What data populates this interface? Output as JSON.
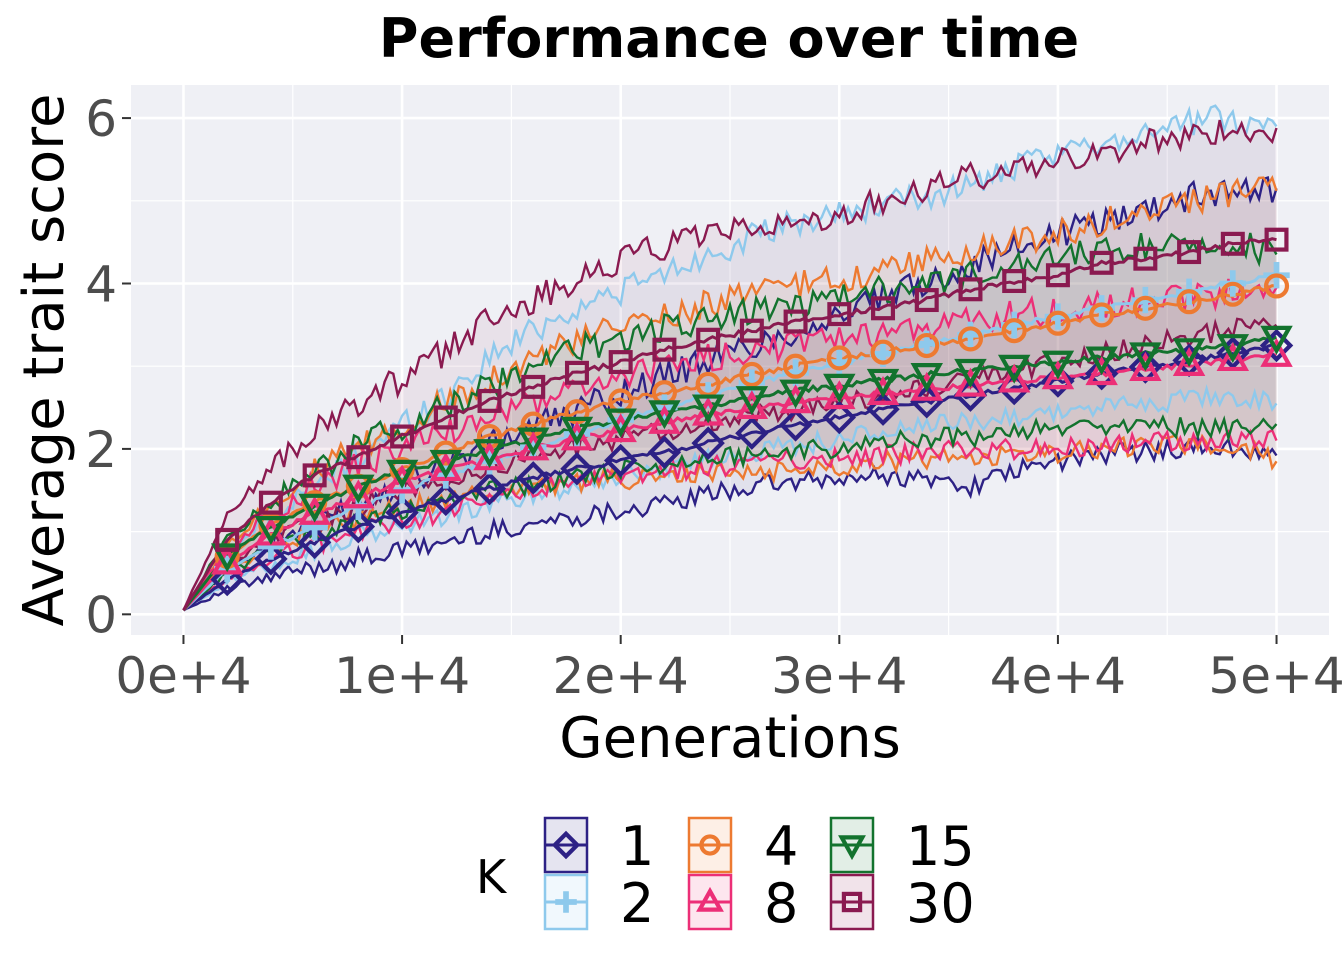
{
  "chart_data": {
    "type": "line",
    "title": "Performance over time",
    "xlabel": "Generations",
    "ylabel": "Average trait score",
    "xlim": [
      -2400,
      52400
    ],
    "ylim": [
      -0.25,
      6.4
    ],
    "x_ticks": [
      0,
      10000,
      20000,
      30000,
      40000,
      50000
    ],
    "x_tick_labels": [
      "0e+4",
      "1e+4",
      "2e+4",
      "3e+4",
      "4e+4",
      "5e+4"
    ],
    "y_ticks": [
      0,
      2,
      4,
      6
    ],
    "y_tick_labels": [
      "0",
      "2",
      "4",
      "6"
    ],
    "grid": true,
    "panel_background": "#eff0f5",
    "legend": {
      "title": "K",
      "position": "bottom",
      "columns": 3
    },
    "x": [
      0,
      2000,
      4000,
      6000,
      8000,
      10000,
      12000,
      14000,
      16000,
      18000,
      20000,
      22000,
      24000,
      26000,
      28000,
      30000,
      32000,
      34000,
      36000,
      38000,
      40000,
      42000,
      44000,
      46000,
      48000,
      50000
    ],
    "series": [
      {
        "name": "1",
        "color": "#2d2185",
        "marker": "diamond",
        "values": [
          0.05,
          0.42,
          0.67,
          0.87,
          1.06,
          1.23,
          1.39,
          1.52,
          1.65,
          1.76,
          1.86,
          1.96,
          2.07,
          2.19,
          2.29,
          2.38,
          2.48,
          2.57,
          2.65,
          2.73,
          2.82,
          2.91,
          2.99,
          3.07,
          3.16,
          3.25
        ],
        "lower": [
          0.05,
          0.3,
          0.44,
          0.57,
          0.67,
          0.77,
          0.87,
          1.0,
          1.1,
          1.18,
          1.27,
          1.32,
          1.45,
          1.55,
          1.6,
          1.62,
          1.68,
          1.63,
          1.55,
          1.72,
          1.85,
          1.93,
          1.98,
          2.02,
          2.0,
          1.92
        ],
        "upper": [
          0.05,
          0.55,
          0.85,
          1.12,
          1.35,
          1.58,
          1.83,
          2.05,
          2.27,
          2.47,
          2.68,
          2.88,
          3.07,
          3.25,
          3.42,
          3.62,
          3.82,
          4.02,
          4.22,
          4.42,
          4.6,
          4.75,
          4.9,
          5.05,
          5.15,
          5.15
        ]
      },
      {
        "name": "2",
        "color": "#8ec9ec",
        "marker": "plus",
        "values": [
          0.05,
          0.55,
          0.82,
          1.05,
          1.3,
          1.5,
          1.68,
          1.85,
          2.02,
          2.18,
          2.35,
          2.5,
          2.65,
          2.8,
          2.92,
          3.05,
          3.15,
          3.27,
          3.38,
          3.5,
          3.6,
          3.7,
          3.8,
          3.9,
          4.0,
          4.1
        ],
        "lower": [
          0.05,
          0.4,
          0.6,
          0.78,
          0.93,
          1.07,
          1.2,
          1.32,
          1.45,
          1.57,
          1.67,
          1.78,
          1.88,
          1.97,
          2.05,
          2.12,
          2.2,
          2.27,
          2.33,
          2.4,
          2.45,
          2.5,
          2.55,
          2.6,
          2.65,
          2.55
        ],
        "upper": [
          0.05,
          0.75,
          1.15,
          1.55,
          1.92,
          2.3,
          2.65,
          3.1,
          3.45,
          3.7,
          3.92,
          4.12,
          4.35,
          4.55,
          4.72,
          4.85,
          4.95,
          5.05,
          5.2,
          5.38,
          5.55,
          5.72,
          5.85,
          5.95,
          6.0,
          5.9
        ]
      },
      {
        "name": "4",
        "color": "#ed7a31",
        "marker": "circle",
        "values": [
          0.05,
          0.7,
          1.08,
          1.35,
          1.55,
          1.75,
          1.95,
          2.15,
          2.3,
          2.45,
          2.58,
          2.68,
          2.78,
          2.9,
          3.0,
          3.1,
          3.17,
          3.25,
          3.33,
          3.43,
          3.52,
          3.62,
          3.7,
          3.78,
          3.87,
          3.97
        ],
        "lower": [
          0.05,
          0.55,
          0.8,
          1.0,
          1.15,
          1.28,
          1.38,
          1.48,
          1.55,
          1.6,
          1.63,
          1.65,
          1.7,
          1.72,
          1.75,
          1.8,
          1.85,
          1.88,
          1.9,
          1.92,
          1.95,
          2.0,
          2.03,
          2.05,
          2.05,
          1.85
        ],
        "upper": [
          0.05,
          0.85,
          1.35,
          1.72,
          2.0,
          2.25,
          2.58,
          2.85,
          3.1,
          3.3,
          3.48,
          3.62,
          3.75,
          3.88,
          3.98,
          4.05,
          4.15,
          4.28,
          4.38,
          4.5,
          4.6,
          4.75,
          4.88,
          5.0,
          5.1,
          5.12
        ]
      },
      {
        "name": "8",
        "color": "#ec2f77",
        "marker": "triangle-up",
        "values": [
          0.05,
          0.62,
          0.97,
          1.22,
          1.42,
          1.6,
          1.75,
          1.88,
          2.0,
          2.12,
          2.22,
          2.32,
          2.42,
          2.5,
          2.57,
          2.62,
          2.67,
          2.72,
          2.77,
          2.82,
          2.86,
          2.91,
          2.96,
          3.02,
          3.08,
          3.13
        ],
        "lower": [
          0.05,
          0.42,
          0.67,
          0.85,
          1.0,
          1.12,
          1.25,
          1.38,
          1.5,
          1.58,
          1.65,
          1.72,
          1.78,
          1.83,
          1.87,
          1.9,
          1.93,
          1.96,
          1.98,
          2.0,
          2.02,
          2.05,
          2.08,
          2.1,
          2.12,
          2.1
        ],
        "upper": [
          0.05,
          0.8,
          1.23,
          1.55,
          1.8,
          2.0,
          2.2,
          2.38,
          2.55,
          2.72,
          2.87,
          3.0,
          3.1,
          3.18,
          3.25,
          3.32,
          3.4,
          3.48,
          3.55,
          3.62,
          3.68,
          3.75,
          3.8,
          3.85,
          3.9,
          3.95
        ]
      },
      {
        "name": "15",
        "color": "#13732e",
        "marker": "triangle-down",
        "values": [
          0.05,
          0.72,
          1.05,
          1.32,
          1.55,
          1.73,
          1.85,
          1.98,
          2.12,
          2.25,
          2.35,
          2.45,
          2.52,
          2.62,
          2.7,
          2.77,
          2.83,
          2.9,
          2.95,
          3.0,
          3.05,
          3.1,
          3.15,
          3.2,
          3.25,
          3.35
        ],
        "lower": [
          0.05,
          0.5,
          0.78,
          0.98,
          1.12,
          1.25,
          1.35,
          1.48,
          1.58,
          1.67,
          1.75,
          1.83,
          1.88,
          1.93,
          1.98,
          2.02,
          2.08,
          2.12,
          2.15,
          2.2,
          2.25,
          2.28,
          2.28,
          2.25,
          2.25,
          2.3
        ],
        "upper": [
          0.05,
          0.92,
          1.35,
          1.72,
          2.03,
          2.28,
          2.5,
          2.75,
          2.97,
          3.2,
          3.35,
          3.45,
          3.55,
          3.65,
          3.72,
          3.82,
          3.92,
          4.0,
          4.1,
          4.2,
          4.3,
          4.4,
          4.45,
          4.5,
          4.52,
          4.35
        ]
      },
      {
        "name": "30",
        "color": "#8a1a50",
        "marker": "square",
        "values": [
          0.05,
          0.9,
          1.35,
          1.68,
          1.9,
          2.15,
          2.38,
          2.58,
          2.75,
          2.92,
          3.05,
          3.2,
          3.32,
          3.43,
          3.54,
          3.63,
          3.7,
          3.8,
          3.93,
          4.03,
          4.1,
          4.25,
          4.3,
          4.38,
          4.48,
          4.53
        ],
        "lower": [
          0.05,
          0.6,
          0.9,
          1.1,
          1.3,
          1.48,
          1.62,
          1.78,
          1.9,
          2.02,
          2.12,
          2.22,
          2.3,
          2.4,
          2.48,
          2.55,
          2.65,
          2.75,
          2.85,
          2.95,
          3.05,
          3.15,
          3.25,
          3.35,
          3.45,
          3.5
        ],
        "upper": [
          0.05,
          1.2,
          1.78,
          2.2,
          2.55,
          2.85,
          3.18,
          3.55,
          3.82,
          4.05,
          4.3,
          4.45,
          4.55,
          4.65,
          4.75,
          4.85,
          5.0,
          5.15,
          5.28,
          5.4,
          5.5,
          5.6,
          5.7,
          5.78,
          5.85,
          5.88
        ]
      }
    ]
  }
}
